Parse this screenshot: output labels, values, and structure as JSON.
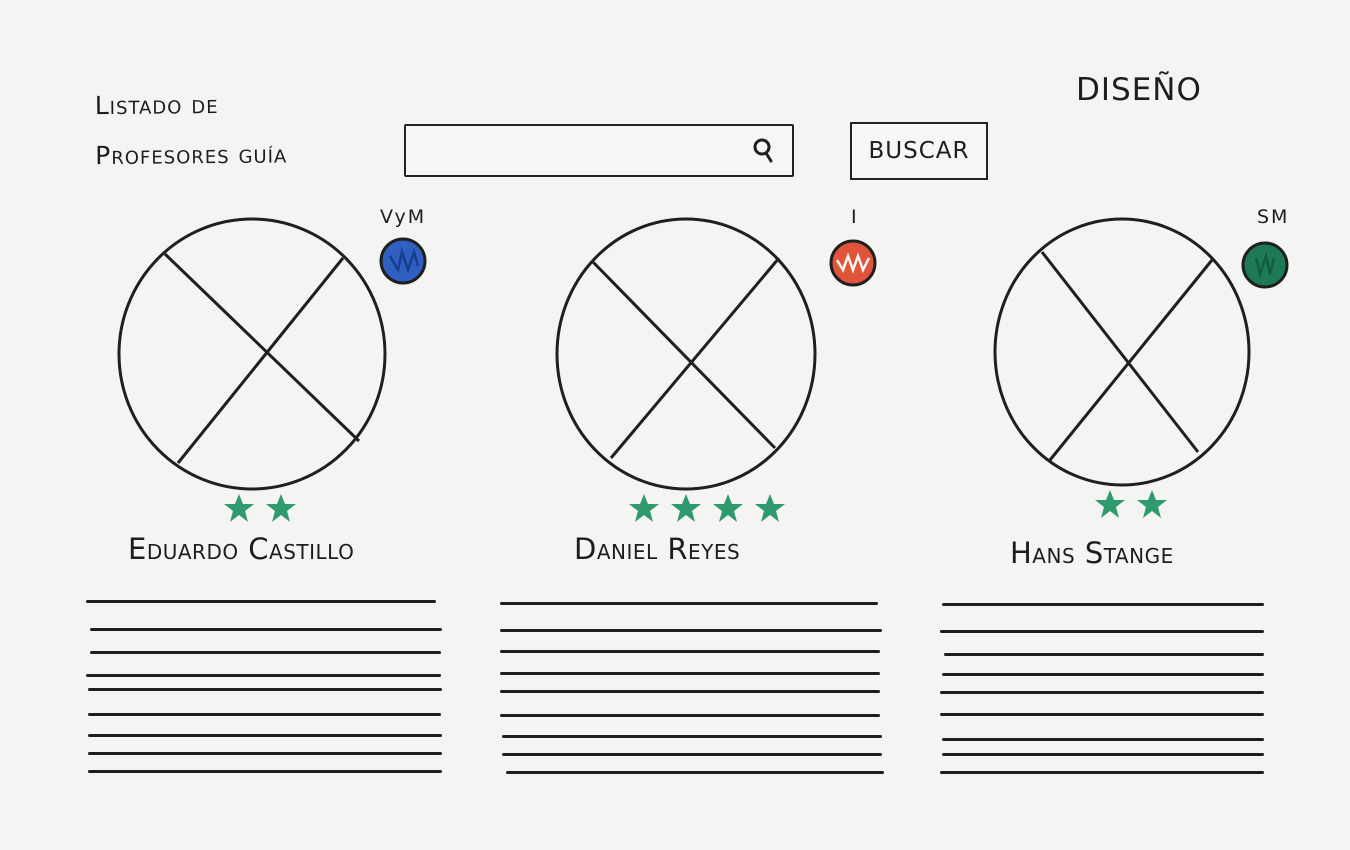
{
  "header": {
    "title_line1": "Listado de",
    "title_line2": "Profesores guía",
    "design_label": "DISEÑO"
  },
  "search": {
    "placeholder": "",
    "value": "",
    "button_label": "BUSCAR"
  },
  "colors": {
    "ink": "#1f1f1f",
    "star": "#2f9a6e",
    "area_vym": "#2f5fc0",
    "area_i": "#e0553a",
    "area_sm": "#1d7a55"
  },
  "professors": [
    {
      "name": "Eduardo Castillo",
      "area": "VyM",
      "area_color": "#2f5fc0",
      "area_icon": "blue-area-dot-icon",
      "rating": 2,
      "photo_icon": "image-placeholder-icon"
    },
    {
      "name": "Daniel Reyes",
      "area": "I",
      "area_color": "#e0553a",
      "area_icon": "red-area-dot-icon",
      "rating": 4,
      "photo_icon": "image-placeholder-icon"
    },
    {
      "name": "Hans Stange",
      "area": "SM",
      "area_color": "#1d7a55",
      "area_icon": "green-area-dot-icon",
      "rating": 2,
      "photo_icon": "image-placeholder-icon"
    }
  ]
}
